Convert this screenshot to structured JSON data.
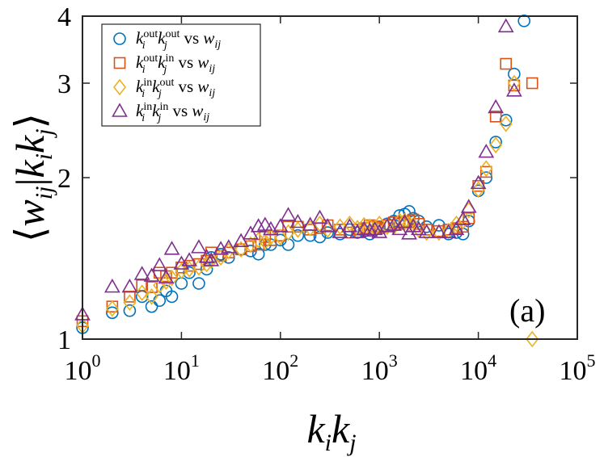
{
  "chart_data": {
    "type": "scatter",
    "panel_label": "(a)",
    "xlabel": "k_i k_j",
    "ylabel": "⟨w_ij | k_i k_j⟩",
    "xscale": "log",
    "yscale": "log",
    "xlim": [
      1,
      100000
    ],
    "ylim": [
      1,
      4
    ],
    "x_ticks": [
      {
        "value": 1,
        "base": "10",
        "exp": "0"
      },
      {
        "value": 10,
        "base": "10",
        "exp": "1"
      },
      {
        "value": 100,
        "base": "10",
        "exp": "2"
      },
      {
        "value": 1000,
        "base": "10",
        "exp": "3"
      },
      {
        "value": 10000,
        "base": "10",
        "exp": "4"
      },
      {
        "value": 100000,
        "base": "10",
        "exp": "5"
      }
    ],
    "y_ticks": [
      {
        "value": 1,
        "label": "1"
      },
      {
        "value": 2,
        "label": "2"
      },
      {
        "value": 3,
        "label": "3"
      },
      {
        "value": 4,
        "label": "4"
      }
    ],
    "legend_position": "top-left",
    "series": [
      {
        "name": "k_i^out k_j^out vs w_ij",
        "legend": {
          "a": "k",
          "a_sub": "i",
          "a_sup": "out",
          "b": "k",
          "b_sub": "j",
          "b_sup": "out",
          "rest": " vs ",
          "w": "w",
          "w_sub": "ij"
        },
        "marker": "circle",
        "color": "#0072BD",
        "points": [
          [
            1,
            1.05
          ],
          [
            2,
            1.12
          ],
          [
            3,
            1.13
          ],
          [
            4,
            1.2
          ],
          [
            5,
            1.15
          ],
          [
            6,
            1.18
          ],
          [
            7,
            1.23
          ],
          [
            8,
            1.2
          ],
          [
            10,
            1.27
          ],
          [
            12,
            1.33
          ],
          [
            15,
            1.27
          ],
          [
            18,
            1.35
          ],
          [
            20,
            1.42
          ],
          [
            25,
            1.44
          ],
          [
            30,
            1.42
          ],
          [
            40,
            1.47
          ],
          [
            50,
            1.46
          ],
          [
            60,
            1.44
          ],
          [
            70,
            1.5
          ],
          [
            80,
            1.5
          ],
          [
            100,
            1.53
          ],
          [
            120,
            1.5
          ],
          [
            150,
            1.56
          ],
          [
            200,
            1.56
          ],
          [
            250,
            1.55
          ],
          [
            300,
            1.58
          ],
          [
            400,
            1.57
          ],
          [
            500,
            1.6
          ],
          [
            600,
            1.58
          ],
          [
            700,
            1.59
          ],
          [
            800,
            1.57
          ],
          [
            900,
            1.6
          ],
          [
            1000,
            1.62
          ],
          [
            1200,
            1.64
          ],
          [
            1400,
            1.66
          ],
          [
            1600,
            1.7
          ],
          [
            1800,
            1.71
          ],
          [
            2000,
            1.73
          ],
          [
            2200,
            1.68
          ],
          [
            2500,
            1.66
          ],
          [
            3000,
            1.62
          ],
          [
            4000,
            1.63
          ],
          [
            5000,
            1.57
          ],
          [
            6000,
            1.58
          ],
          [
            7000,
            1.57
          ],
          [
            8000,
            1.66
          ],
          [
            10000,
            1.89
          ],
          [
            12000,
            2.0
          ],
          [
            15000,
            2.33
          ],
          [
            19000,
            2.56
          ],
          [
            23000,
            3.12
          ],
          [
            29000,
            3.92
          ]
        ]
      },
      {
        "name": "k_i^out k_j^in vs w_ij",
        "legend": {
          "a": "k",
          "a_sub": "i",
          "a_sup": "out",
          "b": "k",
          "b_sub": "j",
          "b_sup": "in",
          "rest": " vs ",
          "w": "w",
          "w_sub": "ij"
        },
        "marker": "square",
        "color": "#D95319",
        "points": [
          [
            1,
            1.08
          ],
          [
            2,
            1.15
          ],
          [
            3,
            1.2
          ],
          [
            4,
            1.26
          ],
          [
            5,
            1.25
          ],
          [
            6,
            1.33
          ],
          [
            7,
            1.31
          ],
          [
            8,
            1.33
          ],
          [
            10,
            1.36
          ],
          [
            12,
            1.37
          ],
          [
            15,
            1.38
          ],
          [
            18,
            1.4
          ],
          [
            20,
            1.45
          ],
          [
            25,
            1.43
          ],
          [
            30,
            1.45
          ],
          [
            40,
            1.47
          ],
          [
            50,
            1.49
          ],
          [
            60,
            1.5
          ],
          [
            70,
            1.55
          ],
          [
            80,
            1.53
          ],
          [
            100,
            1.56
          ],
          [
            120,
            1.62
          ],
          [
            150,
            1.62
          ],
          [
            200,
            1.6
          ],
          [
            250,
            1.61
          ],
          [
            300,
            1.63
          ],
          [
            400,
            1.6
          ],
          [
            500,
            1.58
          ],
          [
            600,
            1.6
          ],
          [
            700,
            1.61
          ],
          [
            800,
            1.63
          ],
          [
            900,
            1.62
          ],
          [
            1000,
            1.61
          ],
          [
            1200,
            1.63
          ],
          [
            1400,
            1.65
          ],
          [
            1600,
            1.64
          ],
          [
            1800,
            1.65
          ],
          [
            2000,
            1.66
          ],
          [
            2200,
            1.67
          ],
          [
            2500,
            1.64
          ],
          [
            3000,
            1.6
          ],
          [
            4000,
            1.59
          ],
          [
            5000,
            1.6
          ],
          [
            6000,
            1.61
          ],
          [
            7000,
            1.62
          ],
          [
            8000,
            1.68
          ],
          [
            10000,
            1.93
          ],
          [
            12000,
            2.05
          ],
          [
            15000,
            2.6
          ],
          [
            19000,
            3.26
          ],
          [
            23000,
            2.97
          ],
          [
            35000,
            3.0
          ]
        ]
      },
      {
        "name": "k_i^in k_j^out vs w_ij",
        "legend": {
          "a": "k",
          "a_sub": "i",
          "a_sup": "in",
          "b": "k",
          "b_sub": "j",
          "b_sup": "out",
          "rest": " vs ",
          "w": "w",
          "w_sub": "ij"
        },
        "marker": "diamond",
        "color": "#EDB120",
        "points": [
          [
            1,
            1.06
          ],
          [
            2,
            1.14
          ],
          [
            3,
            1.17
          ],
          [
            4,
            1.22
          ],
          [
            5,
            1.2
          ],
          [
            6,
            1.26
          ],
          [
            7,
            1.28
          ],
          [
            8,
            1.3
          ],
          [
            10,
            1.34
          ],
          [
            12,
            1.35
          ],
          [
            15,
            1.36
          ],
          [
            18,
            1.38
          ],
          [
            20,
            1.4
          ],
          [
            25,
            1.42
          ],
          [
            30,
            1.46
          ],
          [
            40,
            1.47
          ],
          [
            50,
            1.5
          ],
          [
            60,
            1.53
          ],
          [
            70,
            1.52
          ],
          [
            80,
            1.55
          ],
          [
            100,
            1.55
          ],
          [
            120,
            1.58
          ],
          [
            150,
            1.6
          ],
          [
            200,
            1.61
          ],
          [
            250,
            1.64
          ],
          [
            300,
            1.6
          ],
          [
            400,
            1.62
          ],
          [
            500,
            1.64
          ],
          [
            600,
            1.61
          ],
          [
            700,
            1.63
          ],
          [
            800,
            1.62
          ],
          [
            900,
            1.61
          ],
          [
            1000,
            1.64
          ],
          [
            1200,
            1.62
          ],
          [
            1400,
            1.62
          ],
          [
            1600,
            1.66
          ],
          [
            1800,
            1.66
          ],
          [
            2000,
            1.64
          ],
          [
            2200,
            1.63
          ],
          [
            2500,
            1.6
          ],
          [
            3000,
            1.58
          ],
          [
            4000,
            1.58
          ],
          [
            5000,
            1.59
          ],
          [
            6000,
            1.64
          ],
          [
            7000,
            1.66
          ],
          [
            8000,
            1.74
          ],
          [
            10000,
            1.9
          ],
          [
            12000,
            2.08
          ],
          [
            15000,
            2.3
          ],
          [
            19000,
            2.52
          ],
          [
            23000,
            3.0
          ],
          [
            35000,
            1.0
          ]
        ]
      },
      {
        "name": "k_i^in k_j^in vs w_ij",
        "legend": {
          "a": "k",
          "a_sub": "i",
          "a_sup": "in",
          "b": "k",
          "b_sub": "j",
          "b_sup": "in",
          "rest": " vs ",
          "w": "w",
          "w_sub": "ij"
        },
        "marker": "triangle",
        "color": "#7E2F8E",
        "points": [
          [
            1,
            1.11
          ],
          [
            2,
            1.25
          ],
          [
            3,
            1.25
          ],
          [
            4,
            1.32
          ],
          [
            5,
            1.31
          ],
          [
            6,
            1.37
          ],
          [
            7,
            1.3
          ],
          [
            8,
            1.47
          ],
          [
            10,
            1.38
          ],
          [
            12,
            1.4
          ],
          [
            15,
            1.48
          ],
          [
            18,
            1.42
          ],
          [
            20,
            1.4
          ],
          [
            25,
            1.47
          ],
          [
            30,
            1.48
          ],
          [
            40,
            1.52
          ],
          [
            50,
            1.57
          ],
          [
            60,
            1.62
          ],
          [
            70,
            1.63
          ],
          [
            80,
            1.6
          ],
          [
            100,
            1.62
          ],
          [
            120,
            1.7
          ],
          [
            150,
            1.65
          ],
          [
            200,
            1.63
          ],
          [
            250,
            1.68
          ],
          [
            300,
            1.62
          ],
          [
            400,
            1.58
          ],
          [
            500,
            1.62
          ],
          [
            600,
            1.58
          ],
          [
            700,
            1.6
          ],
          [
            800,
            1.59
          ],
          [
            900,
            1.6
          ],
          [
            1000,
            1.58
          ],
          [
            1200,
            1.62
          ],
          [
            1400,
            1.63
          ],
          [
            1600,
            1.6
          ],
          [
            1800,
            1.65
          ],
          [
            2000,
            1.57
          ],
          [
            2200,
            1.62
          ],
          [
            2500,
            1.6
          ],
          [
            3000,
            1.58
          ],
          [
            4000,
            1.58
          ],
          [
            5000,
            1.58
          ],
          [
            6000,
            1.6
          ],
          [
            7000,
            1.67
          ],
          [
            8000,
            1.76
          ],
          [
            10000,
            1.95
          ],
          [
            12000,
            2.23
          ],
          [
            15000,
            2.7
          ],
          [
            19000,
            3.82
          ],
          [
            23000,
            2.9
          ]
        ]
      }
    ]
  }
}
